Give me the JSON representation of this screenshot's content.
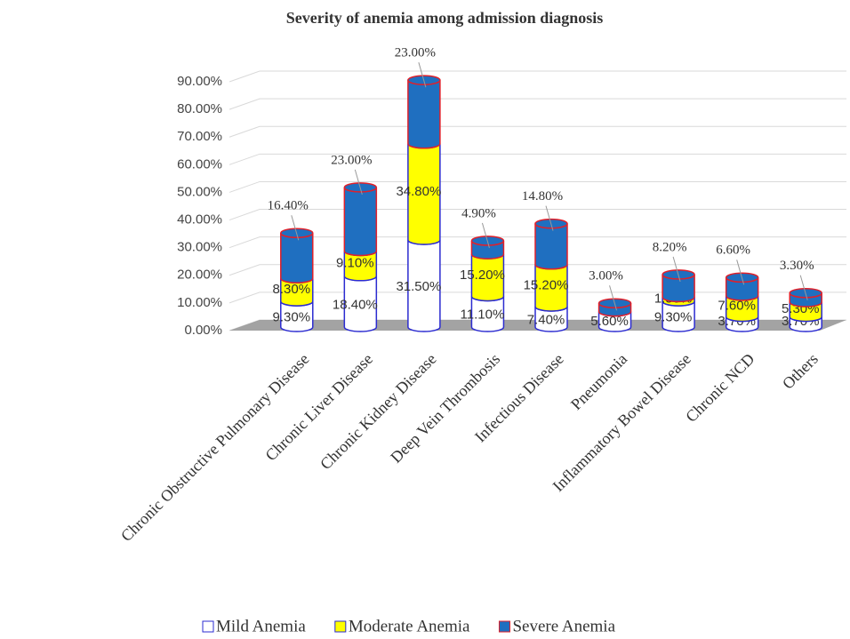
{
  "chart_data": {
    "type": "stacked-cylinder",
    "title": "Severity of anemia among admission diagnosis",
    "categories": [
      "Chronic Obstructive Pulmonary Disease",
      "Chronic Liver Disease",
      "Chronic Kidney Disease",
      "Deep Vein Thrombosis",
      "Infectious Disease",
      "Pneumonia",
      "Inflammatory Bowel Disease",
      "Chronic NCD",
      "Others"
    ],
    "series": [
      {
        "name": "Mild Anemia",
        "color": "#ffffff",
        "stroke": "#2b2bd0",
        "values": [
          9.3,
          18.4,
          31.5,
          11.1,
          7.4,
          5.6,
          9.3,
          3.7,
          3.7
        ],
        "value_labels": [
          "9.30%",
          "18.40%",
          "31.50%",
          "11.10%",
          "7.40%",
          "5.60%",
          "9.30%",
          "3.70%",
          "3.70%"
        ]
      },
      {
        "name": "Moderate Anemia",
        "color": "#ffff00",
        "stroke": "#2b2bd0",
        "values": [
          8.3,
          9.1,
          34.8,
          15.2,
          15.2,
          null,
          1.5,
          7.6,
          5.3
        ],
        "value_labels": [
          "8.30%",
          "9.10%",
          "34.80%",
          "15.20%",
          "15.20%",
          null,
          "1.50%",
          "7.60%",
          "5.30%"
        ]
      },
      {
        "name": "Severe Anemia",
        "color": "#1f6fc0",
        "stroke": "#e0202a",
        "values": [
          16.4,
          23.0,
          23.0,
          4.9,
          14.8,
          3.0,
          8.2,
          6.6,
          3.3
        ],
        "value_labels": [
          "16.40%",
          "23.00%",
          "23.00%",
          "4.90%",
          "14.80%",
          "3.00%",
          "8.20%",
          "6.60%",
          "3.30%"
        ]
      }
    ],
    "ylim": [
      0,
      90
    ],
    "yticks": [
      {
        "value": 0,
        "label": "0.00%"
      },
      {
        "value": 10,
        "label": "10.00%"
      },
      {
        "value": 20,
        "label": "20.00%"
      },
      {
        "value": 30,
        "label": "30.00%"
      },
      {
        "value": 40,
        "label": "40.00%"
      },
      {
        "value": 50,
        "label": "50.00%"
      },
      {
        "value": 60,
        "label": "60.00%"
      },
      {
        "value": 70,
        "label": "70.00%"
      },
      {
        "value": 80,
        "label": "80.00%"
      },
      {
        "value": 90,
        "label": "90.00%"
      }
    ],
    "grid": true,
    "legend": "bottom"
  }
}
